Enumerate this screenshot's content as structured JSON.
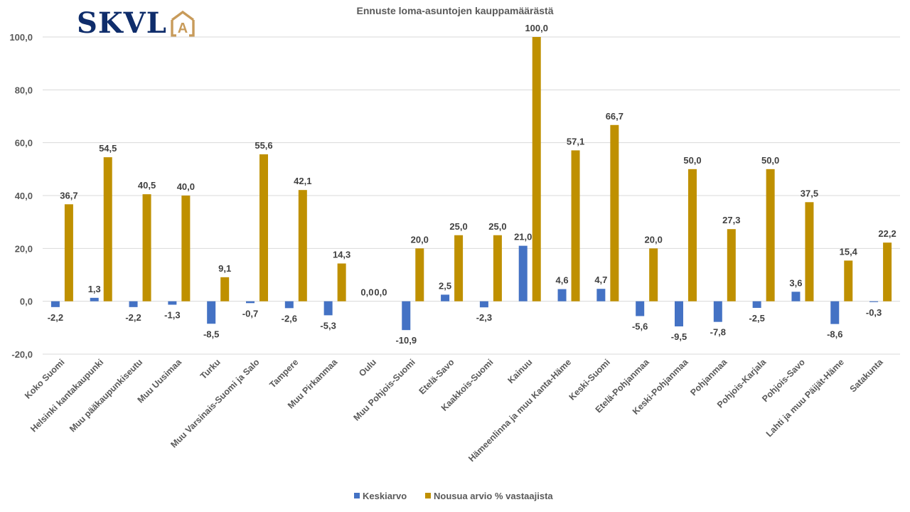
{
  "logo": {
    "text": "SKVL",
    "mark": "A",
    "text_color": "#0f2d6b",
    "mark_color": "#c89b5a",
    "icon": "house-icon"
  },
  "chart_data": {
    "type": "bar",
    "title": "Ennuste loma-asuntojen kauppamäärästä",
    "xlabel": "",
    "ylabel": "",
    "ylim": [
      -20,
      100
    ],
    "yticks": [
      -20,
      0,
      20,
      40,
      60,
      80,
      100
    ],
    "ytick_labels": [
      "-20,0",
      "0,0",
      "20,0",
      "40,0",
      "60,0",
      "80,0",
      "100,0"
    ],
    "grid": true,
    "legend_position": "bottom",
    "decimal_separator": ",",
    "categories": [
      "Koko Suomi",
      "Helsinki kantakaupunki",
      "Muu pääkaupunkiseutu",
      "Muu Uusimaa",
      "Turku",
      "Muu Varsinais-Suomi ja Salo",
      "Tampere",
      "Muu Pirkanmaa",
      "Oulu",
      "Muu Pohjois-Suomi",
      "Etelä-Savo",
      "Kaakkois-Suomi",
      "Kainuu",
      "Hämeenlinna ja muu Kanta-Häme",
      "Keski-Suomi",
      "Etelä-Pohjanmaa",
      "Keski-Pohjanmaa",
      "Pohjanmaa",
      "Pohjois-Karjala",
      "Pohjois-Savo",
      "Lahti ja muu Päijät-Häme",
      "Satakunta"
    ],
    "series": [
      {
        "name": "Keskiarvo",
        "color": "#4472c4",
        "values": [
          -2.2,
          1.3,
          -2.2,
          -1.3,
          -8.5,
          -0.7,
          -2.6,
          -5.3,
          0.0,
          -10.9,
          2.5,
          -2.3,
          21.0,
          4.6,
          4.7,
          -5.6,
          -9.5,
          -7.8,
          -2.5,
          3.6,
          -8.6,
          -0.3
        ]
      },
      {
        "name": "Nousua arvio % vastaajista",
        "color": "#bf9000",
        "values": [
          36.7,
          54.5,
          40.5,
          40.0,
          9.1,
          55.6,
          42.1,
          14.3,
          0.0,
          20.0,
          25.0,
          25.0,
          100.0,
          57.1,
          66.7,
          20.0,
          50.0,
          27.3,
          50.0,
          37.5,
          15.4,
          22.2
        ]
      }
    ]
  }
}
